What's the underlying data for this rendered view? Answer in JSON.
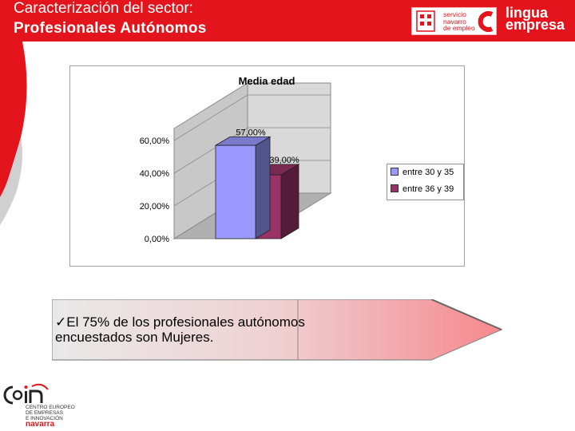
{
  "header": {
    "title_line1": "Caracterización del sector:",
    "title_line2": "Profesionales  Autónomos",
    "bg_color": "#e3141b",
    "logo_sne_lines": [
      "servicio",
      "navarro",
      "de empleo"
    ],
    "logo_lingua_lines": [
      "lingua",
      "empresa"
    ]
  },
  "chart_data": {
    "type": "bar",
    "title": "Media edad",
    "style": "3d-column",
    "categories": [
      ""
    ],
    "series": [
      {
        "name": "entre 30 y 35",
        "values": [
          57.0
        ],
        "label": "57,00%",
        "color": "#9999ff"
      },
      {
        "name": "entre 36 y 39",
        "values": [
          39.0
        ],
        "label": "39,00%",
        "color": "#993366"
      }
    ],
    "y_ticks": [
      "0,00%",
      "20,00%",
      "40,00%",
      "60,00%"
    ],
    "ylim": [
      0,
      60
    ],
    "grid": true,
    "legend_position": "right"
  },
  "callout": {
    "check_glyph": "ü",
    "text_line1": "El 75% de los profesionales autónomos",
    "text_line2": "encuestados son Mujeres."
  },
  "footer_logo": {
    "name": "cein",
    "lines": [
      "CENTRO EUROPEO",
      "DE EMPRESAS",
      "E INNOVACIÓN"
    ],
    "region": "navarra"
  }
}
